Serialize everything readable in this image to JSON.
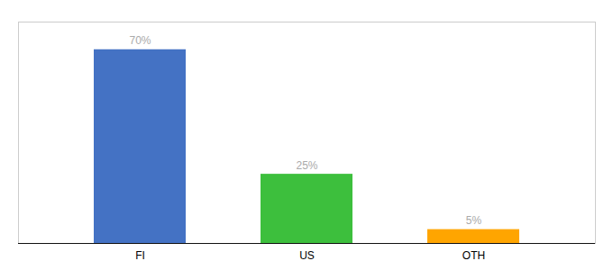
{
  "chart_data": {
    "type": "bar",
    "categories": [
      "FI",
      "US",
      "OTH"
    ],
    "values": [
      70,
      25,
      5
    ],
    "value_labels": [
      "70%",
      "25%",
      "5%"
    ],
    "colors": [
      "#4472C4",
      "#3DBF3D",
      "#FFA500"
    ],
    "ylim": [
      0,
      80
    ],
    "data_labels": true,
    "tick_labels": "x"
  }
}
